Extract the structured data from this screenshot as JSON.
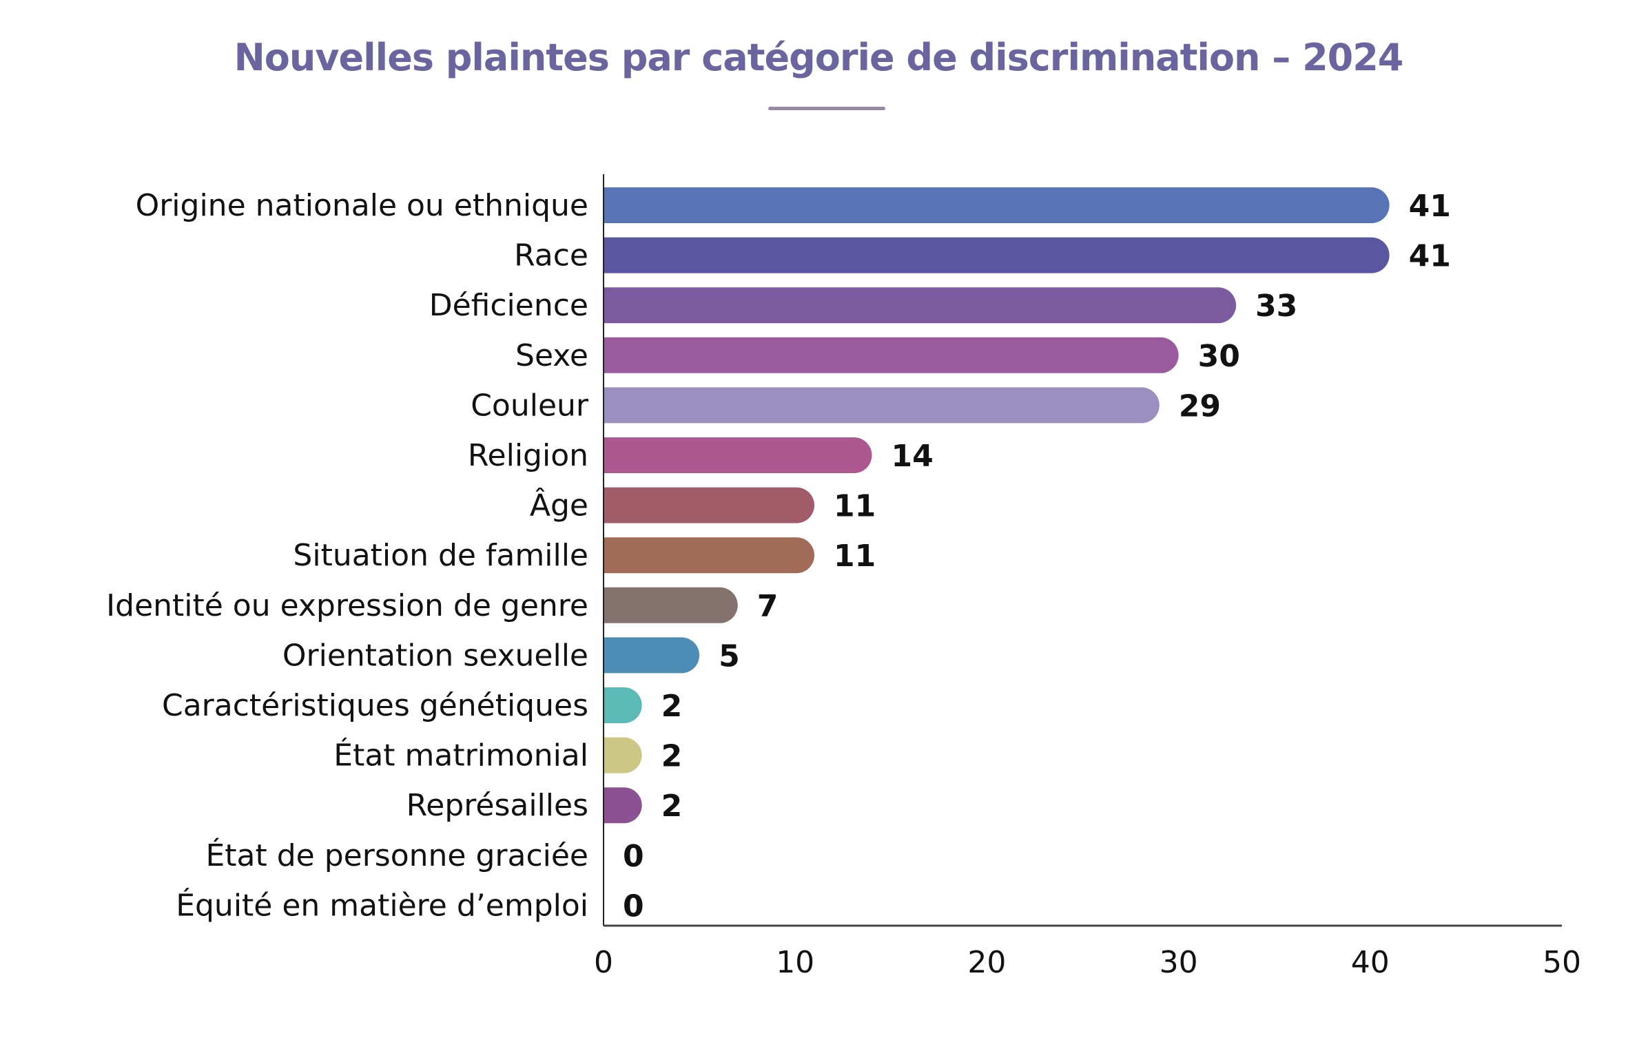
{
  "chart_data": {
    "type": "bar",
    "orientation": "horizontal",
    "title": "Nouvelles plaintes par catégorie de discrimination – 2024",
    "categories": [
      "Origine nationale ou ethnique",
      "Race",
      "Déficience",
      "Sexe",
      "Couleur",
      "Religion",
      "Âge",
      "Situation de famille",
      "Identité ou expression de genre",
      "Orientation sexuelle",
      "Caractéristiques génétiques",
      "État matrimonial",
      "Représailles",
      "État de personne graciée",
      "Équité en matière d’emploi"
    ],
    "values": [
      41,
      41,
      33,
      30,
      29,
      14,
      11,
      11,
      7,
      5,
      2,
      2,
      2,
      0,
      0
    ],
    "colors": [
      "#5874b4",
      "#5b56a0",
      "#7b5aa0",
      "#9a5b9e",
      "#9a8fbe",
      "#ad5891",
      "#a05c68",
      "#a26a58",
      "#85716e",
      "#4d8cb4",
      "#5cbab6",
      "#cdc785",
      "#8b5193",
      "#999999",
      "#999999"
    ],
    "xlim": [
      0,
      50
    ],
    "xticks": [
      "0",
      "10",
      "20",
      "30",
      "40",
      "50"
    ],
    "grid": false,
    "title_color": "#6a659e"
  }
}
